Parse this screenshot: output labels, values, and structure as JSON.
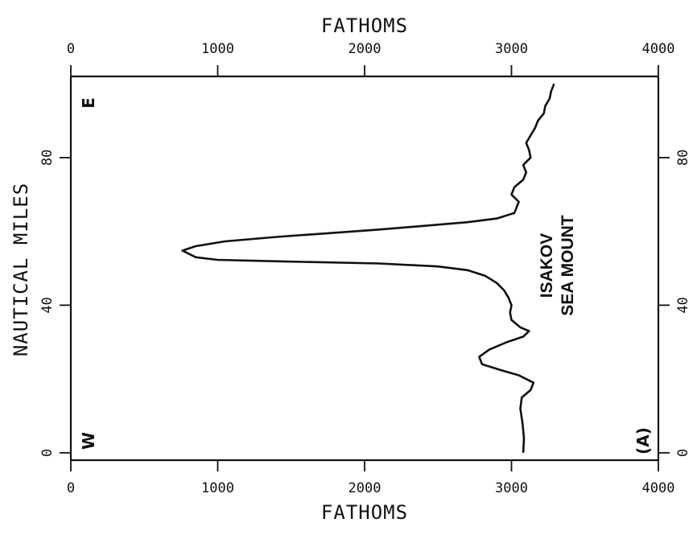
{
  "chart_data": {
    "type": "line",
    "orientation": "rotated-90",
    "title": "",
    "x_axis": {
      "label": "FATHOMS",
      "range": [
        0,
        4000
      ],
      "ticks": [
        0,
        1000,
        2000,
        3000,
        4000
      ],
      "tick_labels": [
        "0",
        "1000",
        "2000",
        "3000",
        "4000"
      ],
      "shown_on": [
        "top",
        "bottom"
      ]
    },
    "y_axis": {
      "label": "NAUTICAL MILES",
      "range": [
        -2,
        102
      ],
      "ticks": [
        0,
        40,
        80
      ],
      "tick_labels": [
        "0",
        "40",
        "80"
      ],
      "shown_on": [
        "left",
        "right"
      ]
    },
    "grid": false,
    "series": [
      {
        "points": [
          [
            3080,
            0
          ],
          [
            3085,
            4
          ],
          [
            3075,
            8
          ],
          [
            3060,
            12
          ],
          [
            3070,
            15
          ],
          [
            3130,
            17
          ],
          [
            3150,
            19
          ],
          [
            3050,
            21
          ],
          [
            2920,
            22.5
          ],
          [
            2800,
            24
          ],
          [
            2780,
            26
          ],
          [
            2850,
            28
          ],
          [
            2970,
            30
          ],
          [
            3080,
            31.5
          ],
          [
            3120,
            33
          ],
          [
            3060,
            34
          ],
          [
            3000,
            36
          ],
          [
            2990,
            38
          ],
          [
            3000,
            40
          ],
          [
            2980,
            42
          ],
          [
            2950,
            44
          ],
          [
            2900,
            46
          ],
          [
            2820,
            48
          ],
          [
            2700,
            49.5
          ],
          [
            2500,
            50.5
          ],
          [
            2100,
            51.3
          ],
          [
            1500,
            51.8
          ],
          [
            1000,
            52.3
          ],
          [
            850,
            53
          ],
          [
            760,
            54.8
          ],
          [
            850,
            56
          ],
          [
            1050,
            57.3
          ],
          [
            1400,
            58.5
          ],
          [
            1750,
            59.5
          ],
          [
            2100,
            60.5
          ],
          [
            2400,
            61.5
          ],
          [
            2700,
            62.5
          ],
          [
            2900,
            63.5
          ],
          [
            3020,
            65
          ],
          [
            3050,
            68
          ],
          [
            3000,
            70
          ],
          [
            3020,
            72
          ],
          [
            3080,
            74
          ],
          [
            3100,
            76
          ],
          [
            3080,
            78
          ],
          [
            3130,
            80
          ],
          [
            3120,
            82
          ],
          [
            3100,
            84
          ],
          [
            3130,
            86
          ],
          [
            3160,
            88
          ],
          [
            3180,
            90
          ],
          [
            3220,
            92
          ],
          [
            3230,
            94
          ],
          [
            3260,
            96
          ],
          [
            3270,
            98
          ],
          [
            3290,
            100
          ]
        ]
      }
    ],
    "annotations": {
      "east": "E",
      "west": "W",
      "panel": "(A)",
      "feature_line1": "ISAKOV",
      "feature_line2": "SEA MOUNT"
    }
  }
}
